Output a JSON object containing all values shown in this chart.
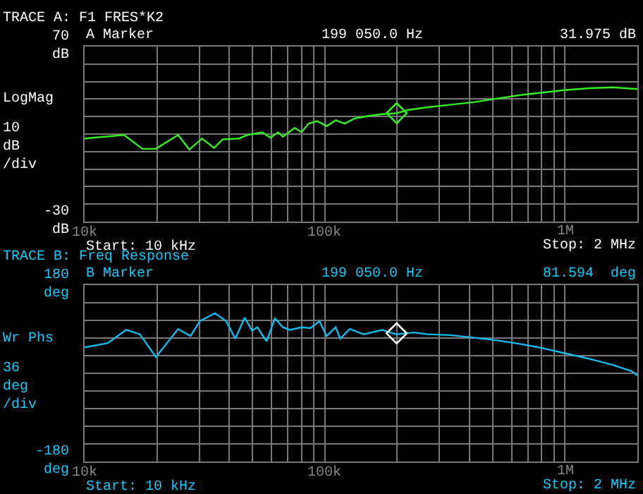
{
  "chart_data": [
    {
      "type": "line",
      "title": "TRACE A: F1 FRES*K2",
      "log": "x",
      "grid": true,
      "xlim": [
        10000,
        2000000
      ],
      "xticks": [
        {
          "value": 10000,
          "label": "10k"
        },
        {
          "value": 20000,
          "label": null
        },
        {
          "value": 30000,
          "label": null
        },
        {
          "value": 40000,
          "label": null
        },
        {
          "value": 50000,
          "label": null
        },
        {
          "value": 60000,
          "label": null
        },
        {
          "value": 70000,
          "label": null
        },
        {
          "value": 80000,
          "label": null
        },
        {
          "value": 90000,
          "label": null
        },
        {
          "value": 100000,
          "label": "100k"
        },
        {
          "value": 200000,
          "label": null
        },
        {
          "value": 300000,
          "label": null
        },
        {
          "value": 400000,
          "label": null
        },
        {
          "value": 500000,
          "label": null
        },
        {
          "value": 600000,
          "label": null
        },
        {
          "value": 700000,
          "label": null
        },
        {
          "value": 800000,
          "label": null
        },
        {
          "value": 900000,
          "label": null
        },
        {
          "value": 1000000,
          "label": "1M"
        },
        {
          "value": 2000000,
          "label": null
        }
      ],
      "ylim": [
        -30,
        70
      ],
      "yticks": [
        {
          "value": 70,
          "label": "70 dB"
        },
        {
          "value": 60,
          "label": null
        },
        {
          "value": 50,
          "label": null
        },
        {
          "value": 40,
          "label": null
        },
        {
          "value": 30,
          "label": null
        },
        {
          "value": 20,
          "label": null
        },
        {
          "value": 10,
          "label": null
        },
        {
          "value": 0,
          "label": null
        },
        {
          "value": -10,
          "label": null
        },
        {
          "value": -20,
          "label": null
        },
        {
          "value": -30,
          "label": "-30 dB"
        }
      ],
      "annotations": [
        "A Marker",
        "199 050.0 Hz",
        "31.975 dB",
        "LogMag",
        "10 dB /div",
        "Start: 10 kHz",
        "Stop: 2 MHz"
      ],
      "series": [
        {
          "type": "line",
          "color": "#33ee22",
          "marker": "none",
          "x": [
            10000,
            14600,
            17400,
            19800,
            24500,
            27300,
            30800,
            34600,
            37600,
            44000,
            47600,
            54900,
            59400,
            64000,
            66900,
            74900,
            80000,
            85600,
            93000,
            101800,
            111000,
            121000,
            133000,
            152000,
            173000,
            198000,
            225000,
            268000,
            334000,
            419000,
            523000,
            650000,
            813000,
            1010000,
            1260000,
            1580000,
            2000000
          ],
          "values": [
            17.5,
            19.5,
            11.6,
            11.6,
            19.5,
            11.1,
            17.5,
            12.1,
            17,
            17.5,
            19.5,
            21,
            18,
            21,
            18.5,
            23.5,
            21,
            26,
            27.4,
            24.5,
            27.9,
            26,
            28.9,
            30.4,
            31.4,
            31.9,
            33.9,
            35.3,
            36.8,
            38.3,
            40.3,
            42.3,
            43.8,
            45.2,
            46.2,
            46.7,
            45.7
          ]
        },
        {
          "type": "scatter",
          "color": "#33ee22",
          "marker": "diamond",
          "x": [
            199050
          ],
          "values": [
            31.975
          ]
        }
      ]
    },
    {
      "type": "line",
      "title": "TRACE B: Freq Response",
      "log": "x",
      "grid": true,
      "xlim": [
        10000,
        2000000
      ],
      "xticks": [
        {
          "value": 10000,
          "label": "10k"
        },
        {
          "value": 20000,
          "label": null
        },
        {
          "value": 30000,
          "label": null
        },
        {
          "value": 40000,
          "label": null
        },
        {
          "value": 50000,
          "label": null
        },
        {
          "value": 60000,
          "label": null
        },
        {
          "value": 70000,
          "label": null
        },
        {
          "value": 80000,
          "label": null
        },
        {
          "value": 90000,
          "label": null
        },
        {
          "value": 100000,
          "label": "100k"
        },
        {
          "value": 200000,
          "label": null
        },
        {
          "value": 300000,
          "label": null
        },
        {
          "value": 400000,
          "label": null
        },
        {
          "value": 500000,
          "label": null
        },
        {
          "value": 600000,
          "label": null
        },
        {
          "value": 700000,
          "label": null
        },
        {
          "value": 800000,
          "label": null
        },
        {
          "value": 900000,
          "label": null
        },
        {
          "value": 1000000,
          "label": "1M"
        },
        {
          "value": 2000000,
          "label": null
        }
      ],
      "ylim": [
        -180,
        180
      ],
      "yticks": [
        {
          "value": 180,
          "label": "180 deg"
        },
        {
          "value": 144,
          "label": null
        },
        {
          "value": 108,
          "label": null
        },
        {
          "value": 72,
          "label": null
        },
        {
          "value": 36,
          "label": null
        },
        {
          "value": 0,
          "label": null
        },
        {
          "value": -36,
          "label": null
        },
        {
          "value": -72,
          "label": null
        },
        {
          "value": -108,
          "label": null
        },
        {
          "value": -144,
          "label": null
        },
        {
          "value": -180,
          "label": "-180 deg"
        }
      ],
      "annotations": [
        "B Marker",
        "199 050.0 Hz",
        "81.594  deg",
        "Wr Phs",
        "36 deg /div",
        "Start: 10 kHz",
        "Stop: 2 MHz"
      ],
      "series": [
        {
          "type": "line",
          "color": "#11bbee",
          "marker": "none",
          "x": [
            10000,
            12500,
            14900,
            17000,
            19800,
            24500,
            27600,
            30200,
            34900,
            38800,
            42400,
            46400,
            49800,
            52400,
            57200,
            62000,
            66900,
            71400,
            80000,
            87000,
            95000,
            101800,
            111000,
            116000,
            127000,
            145000,
            173000,
            198000,
            235000,
            268000,
            334000,
            419000,
            523000,
            650000,
            813000,
            1010000,
            1260000,
            1580000,
            1890000,
            2000000
          ],
          "values": [
            52.8,
            61.8,
            88.7,
            79.7,
            33.1,
            90.4,
            76.1,
            106.6,
            122.7,
            106.6,
            70.7,
            113.7,
            86.9,
            94,
            65.4,
            111.9,
            94,
            88.6,
            94,
            92.2,
            106.6,
            76.1,
            94,
            70.7,
            90.4,
            79.7,
            88.6,
            79.7,
            83.3,
            79.7,
            77.9,
            72.5,
            67.2,
            60,
            51,
            40.3,
            29.6,
            17,
            4.5,
            -4.4
          ]
        },
        {
          "type": "scatter",
          "color": "#ffffff",
          "marker": "diamond",
          "x": [
            199050
          ],
          "values": [
            81.594
          ]
        }
      ]
    }
  ]
}
